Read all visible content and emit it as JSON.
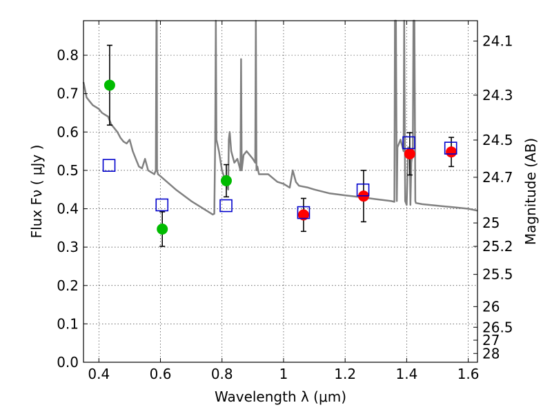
{
  "chart_data": {
    "type": "scatter",
    "xlabel": "Wavelength  λ (μm)",
    "ylabel": "Flux  Fν  ( μJy )",
    "ylabel_right": "Magnitude (AB)",
    "xlim": [
      0.35,
      1.63
    ],
    "ylim": [
      0.0,
      0.89
    ],
    "x_ticks": [
      0.4,
      0.6,
      0.8,
      1.0,
      1.2,
      1.4,
      1.6
    ],
    "x_tick_labels": [
      "0.4",
      "0.6",
      "0.8",
      "1",
      "1.2",
      "1.4",
      "1.6"
    ],
    "y_ticks": [
      0.0,
      0.1,
      0.2,
      0.3,
      0.4,
      0.5,
      0.6,
      0.7,
      0.8
    ],
    "y_tick_labels": [
      "0.0",
      "0.1",
      "0.2",
      "0.3",
      "0.4",
      "0.5",
      "0.6",
      "0.7",
      "0.8"
    ],
    "right_ticks": [
      {
        "label": "24.1",
        "flux": 0.837
      },
      {
        "label": "24.3",
        "flux": 0.696
      },
      {
        "label": "24.5",
        "flux": 0.579
      },
      {
        "label": "24.7",
        "flux": 0.482
      },
      {
        "label": "25",
        "flux": 0.363
      },
      {
        "label": "25.2",
        "flux": 0.302
      },
      {
        "label": "25.5",
        "flux": 0.229
      },
      {
        "label": "26",
        "flux": 0.145
      },
      {
        "label": "26.5",
        "flux": 0.0912
      },
      {
        "label": "27",
        "flux": 0.0575
      },
      {
        "label": "28",
        "flux": 0.0229
      }
    ],
    "grid": true,
    "model_spectrum": {
      "color": "#808080",
      "x": [
        0.35,
        0.36,
        0.37,
        0.38,
        0.39,
        0.4,
        0.41,
        0.42,
        0.43,
        0.44,
        0.45,
        0.46,
        0.47,
        0.48,
        0.49,
        0.5,
        0.51,
        0.52,
        0.53,
        0.54,
        0.55,
        0.56,
        0.57,
        0.58,
        0.585,
        0.587,
        0.588,
        0.589,
        0.592,
        0.6,
        0.65,
        0.7,
        0.75,
        0.77,
        0.775,
        0.778,
        0.78,
        0.782,
        0.79,
        0.8,
        0.82,
        0.822,
        0.825,
        0.83,
        0.84,
        0.85,
        0.86,
        0.862,
        0.864,
        0.87,
        0.88,
        0.9,
        0.908,
        0.91,
        0.912,
        0.915,
        0.92,
        0.95,
        0.98,
        1.0,
        1.02,
        1.03,
        1.04,
        1.05,
        1.08,
        1.1,
        1.15,
        1.2,
        1.25,
        1.3,
        1.35,
        1.36,
        1.362,
        1.365,
        1.368,
        1.37,
        1.38,
        1.39,
        1.392,
        1.395,
        1.4,
        1.405,
        1.41,
        1.412,
        1.415,
        1.42,
        1.422,
        1.425,
        1.428,
        1.43,
        1.45,
        1.5,
        1.55,
        1.6,
        1.63
      ],
      "y": [
        0.73,
        0.69,
        0.68,
        0.67,
        0.665,
        0.66,
        0.65,
        0.645,
        0.64,
        0.62,
        0.61,
        0.6,
        0.585,
        0.575,
        0.57,
        0.58,
        0.55,
        0.53,
        0.51,
        0.505,
        0.53,
        0.5,
        0.495,
        0.49,
        0.5,
        0.89,
        0.89,
        0.5,
        0.49,
        0.485,
        0.45,
        0.42,
        0.395,
        0.385,
        0.387,
        0.58,
        0.89,
        0.58,
        0.55,
        0.5,
        0.45,
        0.58,
        0.6,
        0.55,
        0.52,
        0.53,
        0.5,
        0.79,
        0.5,
        0.54,
        0.55,
        0.53,
        0.52,
        0.89,
        0.5,
        0.51,
        0.49,
        0.49,
        0.47,
        0.465,
        0.455,
        0.5,
        0.47,
        0.46,
        0.455,
        0.45,
        0.44,
        0.435,
        0.43,
        0.425,
        0.42,
        0.418,
        0.89,
        0.89,
        0.42,
        0.56,
        0.58,
        0.55,
        0.89,
        0.42,
        0.41,
        0.56,
        0.55,
        0.41,
        0.52,
        0.55,
        0.89,
        0.89,
        0.42,
        0.415,
        0.412,
        0.408,
        0.404,
        0.4,
        0.395
      ]
    },
    "series": [
      {
        "marker": "circle",
        "color": "#00bb00",
        "x": [
          0.435,
          0.606,
          0.814
        ],
        "y": [
          0.722,
          0.347,
          0.473
        ],
        "err": [
          0.104,
          0.045,
          0.042
        ]
      },
      {
        "marker": "circle",
        "color": "#ff0000",
        "x": [
          1.065,
          1.26,
          1.41,
          1.545
        ],
        "y": [
          0.384,
          0.433,
          0.543,
          0.548
        ],
        "err": [
          0.043,
          0.067,
          0.055,
          0.038
        ]
      },
      {
        "marker": "square-open",
        "color": "#0000cc",
        "x": [
          0.433,
          0.605,
          0.813,
          1.065,
          1.258,
          1.407,
          1.543
        ],
        "y": [
          0.513,
          0.41,
          0.408,
          0.39,
          0.449,
          0.572,
          0.558
        ]
      }
    ]
  }
}
